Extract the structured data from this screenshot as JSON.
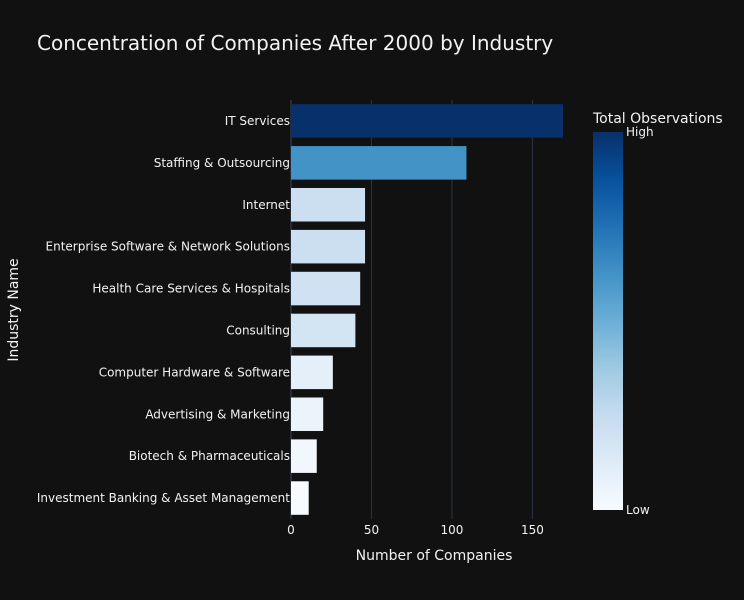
{
  "chart_data": {
    "type": "bar",
    "orientation": "horizontal",
    "title": "Concentration of Companies After 2000 by Industry",
    "xlabel": "Number of Companies",
    "ylabel": "Industry Name",
    "categories": [
      "IT Services",
      "Staffing & Outsourcing",
      "Internet",
      "Enterprise Software & Network Solutions",
      "Health Care Services & Hospitals",
      "Consulting",
      "Computer Hardware & Software",
      "Advertising & Marketing",
      "Biotech & Pharmaceuticals",
      "Investment Banking & Asset Management"
    ],
    "values": [
      169,
      109,
      46,
      46,
      43,
      40,
      26,
      20,
      16,
      11
    ],
    "xlim": [
      0,
      169
    ],
    "xticks": [
      0,
      50,
      100,
      150
    ],
    "grid": true,
    "colorscale": "Blues",
    "colorbar": {
      "title": "Total Observations",
      "tick_high": "High",
      "tick_low": "Low"
    },
    "colors": {
      "background": "#111111",
      "scale_low": "#f7fbff",
      "scale_high": "#08306b"
    }
  }
}
